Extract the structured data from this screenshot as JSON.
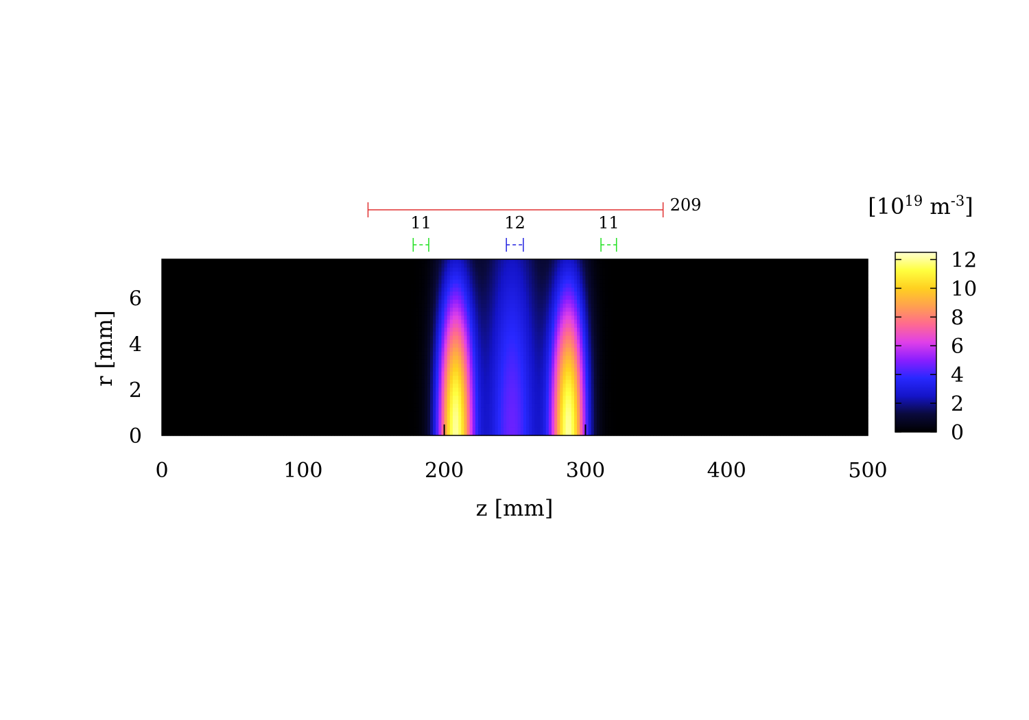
{
  "chart_data": {
    "type": "heatmap",
    "x_axis": {
      "label": "z [mm]",
      "range": [
        0,
        500
      ],
      "ticks": [
        0,
        100,
        200,
        300,
        400,
        500
      ],
      "tick_labels": [
        "0",
        "100",
        "200",
        "300",
        "400",
        "500"
      ]
    },
    "y_axis": {
      "label": "r [mm]",
      "range": [
        0,
        7.7
      ],
      "ticks": [
        0,
        2,
        4,
        6
      ],
      "tick_labels": [
        "0",
        "2",
        "4",
        "6"
      ]
    },
    "colorbar": {
      "unit_label": {
        "prefix": "[10",
        "exp1": "19",
        "mid": " m",
        "exp2": "-3",
        "suffix": "]"
      },
      "range": [
        0,
        12.5
      ],
      "ticks": [
        0,
        2,
        4,
        6,
        8,
        10,
        12
      ],
      "tick_labels": [
        "0",
        "2",
        "4",
        "6",
        "8",
        "10",
        "12"
      ],
      "colormap": [
        "#000000",
        "#0a0a3c",
        "#1414c8",
        "#2828ff",
        "#8a1eff",
        "#e040e8",
        "#ff6a90",
        "#ffa050",
        "#ffd020",
        "#ffff40",
        "#ffffd0"
      ]
    },
    "peaks": [
      {
        "z_center": 208,
        "z_sigma": 9,
        "r_extent": 6.6,
        "peak_value": 12.0
      },
      {
        "z_center": 288,
        "z_sigma": 9,
        "r_extent": 6.6,
        "peak_value": 12.0
      }
    ],
    "middle_region": {
      "z_center": 248,
      "z_sigma": 14,
      "peak_value": 4.6
    },
    "bottom_markers_z": [
      200,
      300
    ],
    "dimensions": [
      {
        "z_start": 146,
        "z_end": 355,
        "label": "209",
        "color": "#e03030",
        "style": "solid"
      },
      {
        "z_start": 178,
        "z_end": 189,
        "label": "11",
        "color": "#20e020",
        "style": "dashed"
      },
      {
        "z_start": 244,
        "z_end": 256,
        "label": "12",
        "color": "#2020e0",
        "style": "dashed"
      },
      {
        "z_start": 311,
        "z_end": 322,
        "label": "11",
        "color": "#20e020",
        "style": "dashed"
      }
    ],
    "grid": false
  }
}
